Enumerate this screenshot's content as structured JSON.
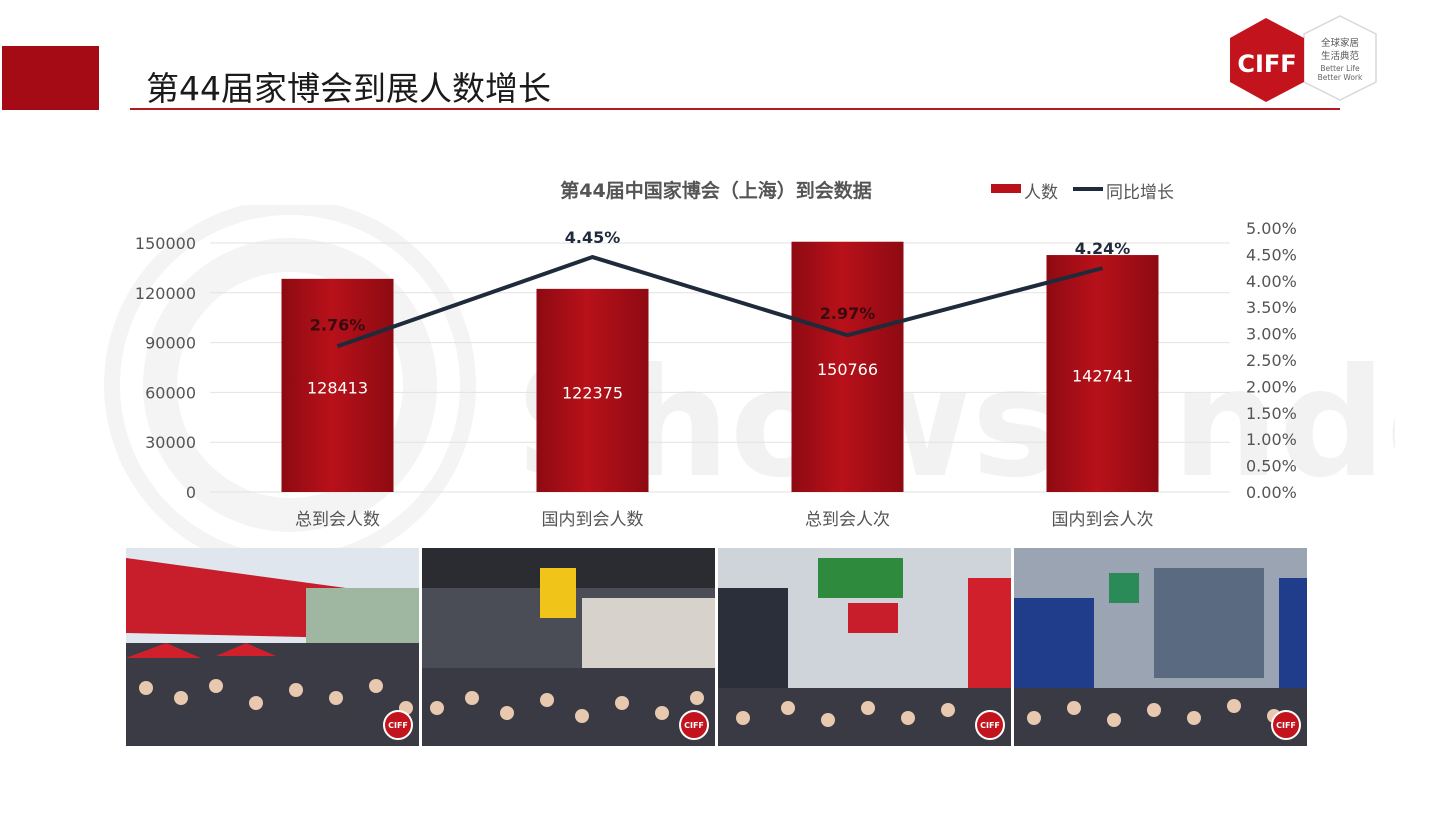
{
  "header": {
    "title": "第44届家博会到展人数增长",
    "logo_text": "CIFF",
    "logo_tagline_cn_1": "全球家居",
    "logo_tagline_cn_2": "生活典范",
    "logo_tagline_en_1": "Better Life",
    "logo_tagline_en_2": "Better Work"
  },
  "colors": {
    "accent": "#a50b14",
    "bar": "#b8111a",
    "line": "#1f2a3a",
    "grid": "#e2e2e2"
  },
  "watermark": {
    "text": "Showsfinder"
  },
  "chart_data": {
    "type": "bar",
    "title": "第44届中国家博会（上海）到会数据",
    "categories": [
      "总到会人数",
      "国内到会人数",
      "总到会人次",
      "国内到会人次"
    ],
    "series": [
      {
        "name": "人数",
        "type": "bar",
        "axis": "left",
        "values": [
          128413,
          122375,
          150766,
          142741
        ]
      },
      {
        "name": "同比增长",
        "type": "line",
        "axis": "right",
        "values": [
          2.76,
          4.45,
          2.97,
          4.24
        ],
        "labels": [
          "2.76%",
          "4.45%",
          "2.97%",
          "4.24%"
        ]
      }
    ],
    "ylim": [
      0,
      150000
    ],
    "yticks": [
      0,
      30000,
      60000,
      90000,
      120000,
      150000
    ],
    "y2lim": [
      0,
      5.0
    ],
    "y2ticks": [
      "0.00%",
      "0.50%",
      "1.00%",
      "1.50%",
      "2.00%",
      "2.50%",
      "3.00%",
      "3.50%",
      "4.00%",
      "4.50%",
      "5.00%"
    ],
    "legend": "top-right",
    "grid": true
  },
  "photos": [
    {
      "icon": "exhibition-entrance-crowd",
      "badge": "CIFF"
    },
    {
      "icon": "hall-4-1-crowd",
      "badge": "CIFF"
    },
    {
      "icon": "hall-6-1-outdoor-furniture-crowd",
      "badge": "CIFF"
    },
    {
      "icon": "hall-7-1-booth-crowd",
      "badge": "CIFF"
    }
  ]
}
